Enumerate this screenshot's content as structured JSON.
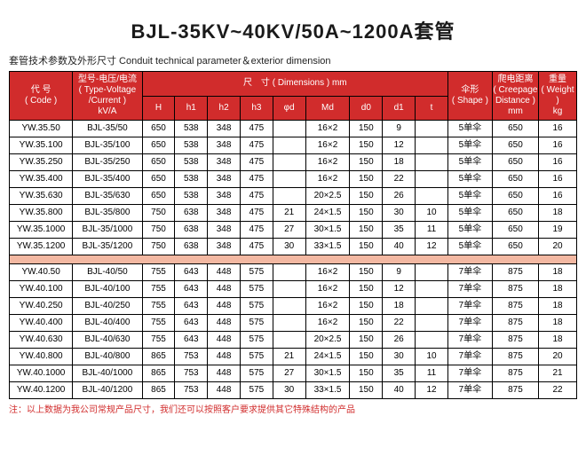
{
  "title": "BJL-35KV~40KV/50A~1200A套管",
  "subtitle": "套管技术参数及外形尺寸  Conduit technical parameter＆exterior dimension",
  "headers": {
    "code": "代 号\n( Code )",
    "type": "型号-电压/电流\n( Type-Voltage\n/Current )\nkV/A",
    "dim_group": "尺　寸 ( Dimensions ) mm",
    "H": "H",
    "h1": "h1",
    "h2": "h2",
    "h3": "h3",
    "phid": "φd",
    "Md": "Md",
    "d0": "d0",
    "d1": "d1",
    "t": "t",
    "shape": "伞形\n( Shape )",
    "creep": "爬电距离\n( Creepage\nDistance )\nmm",
    "weight": "重量\n( Weight )\nkg"
  },
  "rows35": [
    {
      "code": "YW.35.50",
      "type": "BJL-35/50",
      "H": "650",
      "h1": "538",
      "h2": "348",
      "h3": "475",
      "phid": "",
      "Md": "16×2",
      "d0": "150",
      "d1": "9",
      "t": "",
      "shape": "5单伞",
      "creep": "650",
      "w": "16"
    },
    {
      "code": "YW.35.100",
      "type": "BJL-35/100",
      "H": "650",
      "h1": "538",
      "h2": "348",
      "h3": "475",
      "phid": "",
      "Md": "16×2",
      "d0": "150",
      "d1": "12",
      "t": "",
      "shape": "5单伞",
      "creep": "650",
      "w": "16"
    },
    {
      "code": "YW.35.250",
      "type": "BJL-35/250",
      "H": "650",
      "h1": "538",
      "h2": "348",
      "h3": "475",
      "phid": "",
      "Md": "16×2",
      "d0": "150",
      "d1": "18",
      "t": "",
      "shape": "5单伞",
      "creep": "650",
      "w": "16"
    },
    {
      "code": "YW.35.400",
      "type": "BJL-35/400",
      "H": "650",
      "h1": "538",
      "h2": "348",
      "h3": "475",
      "phid": "",
      "Md": "16×2",
      "d0": "150",
      "d1": "22",
      "t": "",
      "shape": "5单伞",
      "creep": "650",
      "w": "16"
    },
    {
      "code": "YW.35.630",
      "type": "BJL-35/630",
      "H": "650",
      "h1": "538",
      "h2": "348",
      "h3": "475",
      "phid": "",
      "Md": "20×2.5",
      "d0": "150",
      "d1": "26",
      "t": "",
      "shape": "5单伞",
      "creep": "650",
      "w": "16"
    },
    {
      "code": "YW.35.800",
      "type": "BJL-35/800",
      "H": "750",
      "h1": "638",
      "h2": "348",
      "h3": "475",
      "phid": "21",
      "Md": "24×1.5",
      "d0": "150",
      "d1": "30",
      "t": "10",
      "shape": "5单伞",
      "creep": "650",
      "w": "18"
    },
    {
      "code": "YW.35.1000",
      "type": "BJL-35/1000",
      "H": "750",
      "h1": "638",
      "h2": "348",
      "h3": "475",
      "phid": "27",
      "Md": "30×1.5",
      "d0": "150",
      "d1": "35",
      "t": "11",
      "shape": "5单伞",
      "creep": "650",
      "w": "19"
    },
    {
      "code": "YW.35.1200",
      "type": "BJL-35/1200",
      "H": "750",
      "h1": "638",
      "h2": "348",
      "h3": "475",
      "phid": "30",
      "Md": "33×1.5",
      "d0": "150",
      "d1": "40",
      "t": "12",
      "shape": "5单伞",
      "creep": "650",
      "w": "20"
    }
  ],
  "rows40": [
    {
      "code": "YW.40.50",
      "type": "BJL-40/50",
      "H": "755",
      "h1": "643",
      "h2": "448",
      "h3": "575",
      "phid": "",
      "Md": "16×2",
      "d0": "150",
      "d1": "9",
      "t": "",
      "shape": "7单伞",
      "creep": "875",
      "w": "18"
    },
    {
      "code": "YW.40.100",
      "type": "BJL-40/100",
      "H": "755",
      "h1": "643",
      "h2": "448",
      "h3": "575",
      "phid": "",
      "Md": "16×2",
      "d0": "150",
      "d1": "12",
      "t": "",
      "shape": "7单伞",
      "creep": "875",
      "w": "18"
    },
    {
      "code": "YW.40.250",
      "type": "BJL-40/250",
      "H": "755",
      "h1": "643",
      "h2": "448",
      "h3": "575",
      "phid": "",
      "Md": "16×2",
      "d0": "150",
      "d1": "18",
      "t": "",
      "shape": "7单伞",
      "creep": "875",
      "w": "18"
    },
    {
      "code": "YW.40.400",
      "type": "BJL-40/400",
      "H": "755",
      "h1": "643",
      "h2": "448",
      "h3": "575",
      "phid": "",
      "Md": "16×2",
      "d0": "150",
      "d1": "22",
      "t": "",
      "shape": "7单伞",
      "creep": "875",
      "w": "18"
    },
    {
      "code": "YW.40.630",
      "type": "BJL-40/630",
      "H": "755",
      "h1": "643",
      "h2": "448",
      "h3": "575",
      "phid": "",
      "Md": "20×2.5",
      "d0": "150",
      "d1": "26",
      "t": "",
      "shape": "7单伞",
      "creep": "875",
      "w": "18"
    },
    {
      "code": "YW.40.800",
      "type": "BJL-40/800",
      "H": "865",
      "h1": "753",
      "h2": "448",
      "h3": "575",
      "phid": "21",
      "Md": "24×1.5",
      "d0": "150",
      "d1": "30",
      "t": "10",
      "shape": "7单伞",
      "creep": "875",
      "w": "20"
    },
    {
      "code": "YW.40.1000",
      "type": "BJL-40/1000",
      "H": "865",
      "h1": "753",
      "h2": "448",
      "h3": "575",
      "phid": "27",
      "Md": "30×1.5",
      "d0": "150",
      "d1": "35",
      "t": "11",
      "shape": "7单伞",
      "creep": "875",
      "w": "21"
    },
    {
      "code": "YW.40.1200",
      "type": "BJL-40/1200",
      "H": "865",
      "h1": "753",
      "h2": "448",
      "h3": "575",
      "phid": "30",
      "Md": "33×1.5",
      "d0": "150",
      "d1": "40",
      "t": "12",
      "shape": "7单伞",
      "creep": "875",
      "w": "22"
    }
  ],
  "footer": "注：以上数据为我公司常规产品尺寸，我们还可以按照客户要求提供其它特殊结构的产品"
}
